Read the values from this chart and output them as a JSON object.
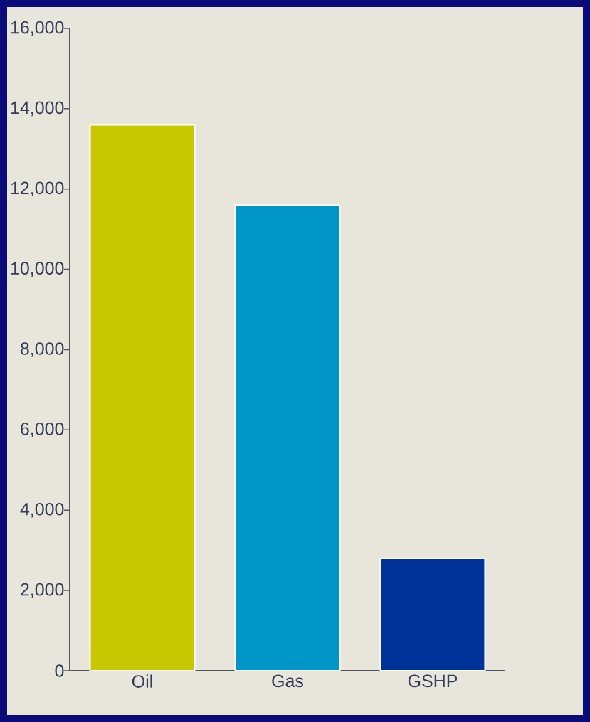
{
  "chart_data": {
    "type": "bar",
    "categories": [
      "Oil",
      "Gas",
      "GSHP"
    ],
    "values": [
      13600,
      11600,
      2800
    ],
    "colors": [
      "#c8c800",
      "#0097c8",
      "#003399"
    ],
    "ylim": [
      0,
      16000
    ],
    "yticks": [
      0,
      {
        "value": 2000,
        "label": "2,000"
      },
      {
        "value": 4000,
        "label": "4,000"
      },
      {
        "value": 6000,
        "label": "6,000"
      },
      {
        "value": 8000,
        "label": "8,000"
      },
      {
        "value": 10000,
        "label": "10,000"
      },
      {
        "value": 12000,
        "label": "12,000"
      },
      {
        "value": 14000,
        "label": "14,000"
      },
      {
        "value": 16000,
        "label": "16,000"
      }
    ]
  }
}
